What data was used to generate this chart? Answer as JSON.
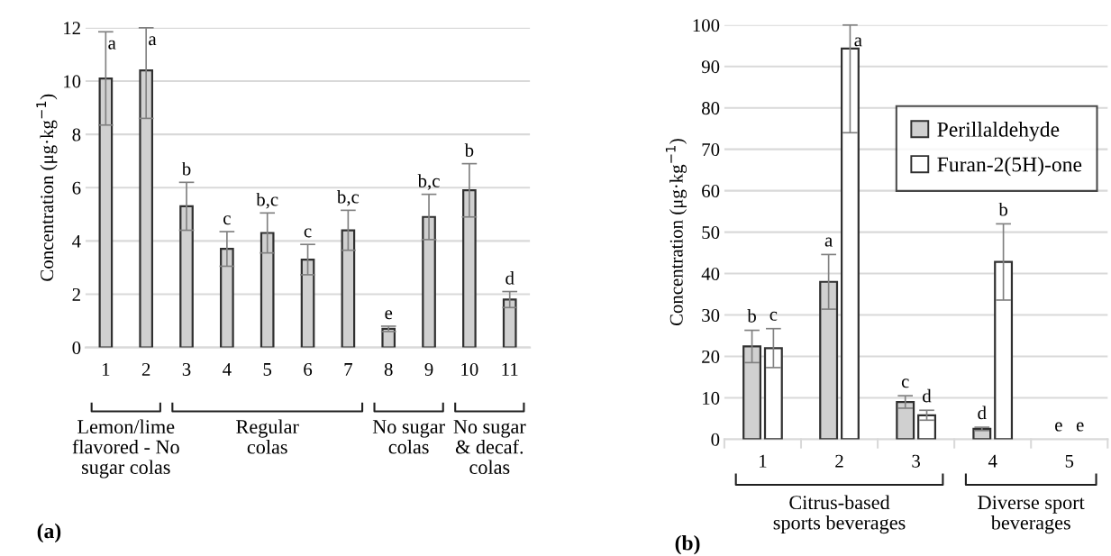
{
  "chart_data": [
    {
      "type": "bar",
      "title": "(a)",
      "ylabel": "Concentration (μg·kg$^{−1}$)",
      "categories": [
        "1",
        "2",
        "3",
        "4",
        "5",
        "6",
        "7",
        "8",
        "9",
        "10",
        "11"
      ],
      "values": [
        10.1,
        10.4,
        5.3,
        3.7,
        4.3,
        3.3,
        4.4,
        0.7,
        4.9,
        5.9,
        1.8
      ],
      "errors": [
        1.75,
        [
          8.6,
          12
        ],
        0.9,
        0.65,
        0.75,
        0.57,
        0.75,
        0.1,
        0.85,
        1.0,
        0.3
      ],
      "value_labels": [
        "a",
        "a",
        "b",
        "c",
        "b,c",
        "c",
        "b,c",
        "e",
        "b,c",
        "b",
        "d"
      ],
      "color": "#d0d0d0",
      "ylim": [
        0,
        12
      ],
      "yticks": [
        0,
        2,
        4,
        6,
        8,
        10,
        12
      ],
      "grid": "y",
      "legend": false,
      "annotations": [
        "Lemon/lime\nflavored - No\nsugar colas",
        "Regular\ncolas",
        "No sugar\ncolas",
        "No sugar\n& decaf.\ncolas"
      ]
    },
    {
      "type": "bar",
      "title": "(b)",
      "ylabel": "Concentration (μg·kg$^{−1}$)",
      "categories": [
        "1",
        "2",
        "3",
        "4",
        "5"
      ],
      "series": [
        {
          "name": "Perillaldehyde",
          "color": "#d0d0d0",
          "values": [
            22.4,
            38,
            9,
            2.5,
            0
          ],
          "errors": [
            3.9,
            6.6,
            1.5,
            0.4,
            null
          ],
          "value_labels": [
            "b",
            "a",
            "c",
            "d",
            "e"
          ]
        },
        {
          "name": "Furan-2(5H)-one",
          "color": "#ffffff",
          "values": [
            22,
            94.3,
            5.8,
            42.8,
            0
          ],
          "errors": [
            4.7,
            [
              74,
              100
            ],
            1.2,
            9.2,
            null
          ],
          "value_labels": [
            "c",
            "a",
            "d",
            "b",
            "e"
          ]
        }
      ],
      "ylim": [
        0,
        100
      ],
      "yticks": [
        0,
        10,
        20,
        30,
        40,
        50,
        60,
        70,
        80,
        90,
        100
      ],
      "grid": "y",
      "legend": "top right",
      "annotations": [
        "Citrus-based\nsports beverages",
        "Diverse sport\nbeverages"
      ]
    }
  ]
}
